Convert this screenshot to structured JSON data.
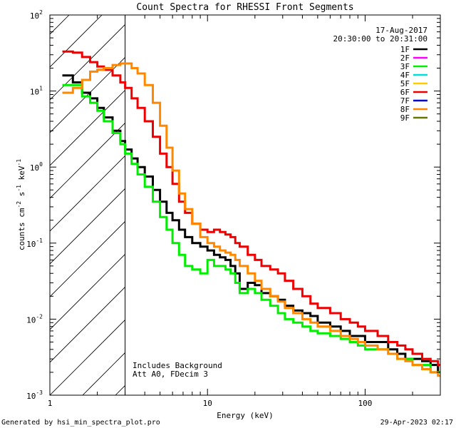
{
  "chart_data": {
    "type": "line",
    "title": "Count Spectra for RHESSI Front Segments",
    "xlabel": "Energy (keV)",
    "ylabel_parts": [
      "counts cm",
      "-2",
      " s",
      "-1",
      " keV",
      "-1"
    ],
    "xscale": "log",
    "yscale": "log",
    "xlim": [
      1,
      300
    ],
    "ylim": [
      0.001,
      100
    ],
    "x_ticks": [
      {
        "value": 1,
        "label": "1"
      },
      {
        "value": 10,
        "label": "10"
      },
      {
        "value": 100,
        "label": "100"
      }
    ],
    "y_ticks": [
      {
        "value": 100,
        "base": "10",
        "exp": "2"
      },
      {
        "value": 10,
        "base": "10",
        "exp": "1"
      },
      {
        "value": 1,
        "base": "10",
        "exp": "0"
      },
      {
        "value": 0.1,
        "base": "10",
        "exp": "-1"
      },
      {
        "value": 0.01,
        "base": "10",
        "exp": "-2"
      },
      {
        "value": 0.001,
        "base": "10",
        "exp": "-3"
      }
    ],
    "cutoff_energy": 3,
    "date": "17-Aug-2017",
    "time_range": "20:30:00 to 20:31:00",
    "annotations": [
      "Includes Background",
      "Att A0, FDecim 3"
    ],
    "legend": [
      {
        "name": "1F",
        "color": "#000000"
      },
      {
        "name": "2F",
        "color": "#ff00ff"
      },
      {
        "name": "3F",
        "color": "#00ee00"
      },
      {
        "name": "4F",
        "color": "#00dddd"
      },
      {
        "name": "5F",
        "color": "#ffcc00"
      },
      {
        "name": "6F",
        "color": "#ee0000"
      },
      {
        "name": "7F",
        "color": "#0000cc"
      },
      {
        "name": "8F",
        "color": "#ff8800"
      },
      {
        "name": "9F",
        "color": "#667700"
      }
    ],
    "series": [
      {
        "name": "1F",
        "color": "#000000",
        "x": [
          1.2,
          1.4,
          1.6,
          1.8,
          2.0,
          2.2,
          2.5,
          2.8,
          3.0,
          3.3,
          3.6,
          4.0,
          4.5,
          5.0,
          5.5,
          6.0,
          6.6,
          7.2,
          8.0,
          9.0,
          10,
          11,
          12,
          13,
          14,
          15,
          16,
          18,
          20,
          22,
          25,
          28,
          31,
          35,
          40,
          45,
          50,
          60,
          70,
          80,
          90,
          100,
          120,
          140,
          160,
          180,
          200,
          230,
          260,
          290
        ],
        "y": [
          16,
          13,
          9.5,
          8,
          6,
          4.5,
          3,
          2.2,
          1.7,
          1.3,
          1.0,
          0.75,
          0.5,
          0.35,
          0.25,
          0.2,
          0.15,
          0.12,
          0.1,
          0.09,
          0.08,
          0.07,
          0.065,
          0.06,
          0.05,
          0.04,
          0.025,
          0.03,
          0.028,
          0.022,
          0.02,
          0.018,
          0.015,
          0.013,
          0.012,
          0.011,
          0.009,
          0.008,
          0.007,
          0.006,
          0.006,
          0.005,
          0.005,
          0.004,
          0.0035,
          0.003,
          0.003,
          0.0028,
          0.0025,
          0.002
        ]
      },
      {
        "name": "3F",
        "color": "#00ee00",
        "x": [
          1.2,
          1.4,
          1.6,
          1.8,
          2.0,
          2.2,
          2.5,
          2.8,
          3.0,
          3.3,
          3.6,
          4.0,
          4.5,
          5.0,
          5.5,
          6.0,
          6.6,
          7.2,
          8.0,
          9.0,
          10,
          11,
          12,
          13,
          14,
          15,
          16,
          18,
          20,
          22,
          25,
          28,
          31,
          35,
          40,
          45,
          50,
          60,
          70,
          80,
          90,
          100,
          120,
          140,
          160,
          180,
          200,
          230,
          260,
          290
        ],
        "y": [
          12,
          12,
          8.5,
          7,
          5.5,
          4,
          2.8,
          2,
          1.5,
          1.1,
          0.8,
          0.55,
          0.35,
          0.22,
          0.15,
          0.1,
          0.07,
          0.05,
          0.045,
          0.04,
          0.06,
          0.05,
          0.05,
          0.045,
          0.04,
          0.03,
          0.022,
          0.025,
          0.022,
          0.018,
          0.015,
          0.012,
          0.01,
          0.009,
          0.008,
          0.007,
          0.0065,
          0.006,
          0.0055,
          0.005,
          0.0045,
          0.004,
          0.004,
          0.0035,
          0.003,
          0.003,
          0.0025,
          0.0025,
          0.002,
          0.002
        ]
      },
      {
        "name": "6F",
        "color": "#ee0000",
        "x": [
          1.2,
          1.4,
          1.6,
          1.8,
          2.0,
          2.2,
          2.5,
          2.8,
          3.0,
          3.3,
          3.6,
          4.0,
          4.5,
          5.0,
          5.5,
          6.0,
          6.6,
          7.2,
          8.0,
          9.0,
          10,
          11,
          12,
          13,
          14,
          15,
          16,
          18,
          20,
          22,
          25,
          28,
          31,
          35,
          40,
          45,
          50,
          60,
          70,
          80,
          90,
          100,
          120,
          140,
          160,
          180,
          200,
          230,
          260,
          290
        ],
        "y": [
          33,
          32,
          28,
          24,
          21,
          19,
          16,
          13,
          11,
          8,
          6,
          4,
          2.5,
          1.5,
          1.0,
          0.6,
          0.35,
          0.25,
          0.18,
          0.15,
          0.14,
          0.15,
          0.14,
          0.13,
          0.12,
          0.1,
          0.09,
          0.07,
          0.06,
          0.05,
          0.045,
          0.04,
          0.032,
          0.025,
          0.02,
          0.016,
          0.014,
          0.012,
          0.01,
          0.009,
          0.008,
          0.007,
          0.006,
          0.005,
          0.0045,
          0.004,
          0.0035,
          0.003,
          0.0028,
          0.0025
        ]
      },
      {
        "name": "8F",
        "color": "#ff8800",
        "x": [
          1.2,
          1.4,
          1.6,
          1.8,
          2.0,
          2.2,
          2.5,
          2.8,
          3.0,
          3.3,
          3.6,
          4.0,
          4.5,
          5.0,
          5.5,
          6.0,
          6.6,
          7.2,
          8.0,
          9.0,
          10,
          11,
          12,
          13,
          14,
          15,
          16,
          18,
          20,
          22,
          25,
          28,
          31,
          35,
          40,
          45,
          50,
          60,
          70,
          80,
          90,
          100,
          120,
          140,
          160,
          180,
          200,
          230,
          260,
          290
        ],
        "y": [
          9.5,
          11,
          14,
          18,
          19,
          20,
          22,
          23,
          23,
          20,
          17,
          12,
          7,
          3.5,
          1.8,
          0.9,
          0.45,
          0.28,
          0.18,
          0.12,
          0.1,
          0.09,
          0.08,
          0.075,
          0.07,
          0.06,
          0.05,
          0.04,
          0.032,
          0.025,
          0.02,
          0.017,
          0.014,
          0.012,
          0.01,
          0.009,
          0.008,
          0.007,
          0.006,
          0.0055,
          0.005,
          0.0045,
          0.004,
          0.0035,
          0.003,
          0.0028,
          0.0025,
          0.0022,
          0.002,
          0.0018
        ]
      }
    ]
  },
  "footer": {
    "left": "Generated by hsi_min_spectra_plot.pro",
    "right": "29-Apr-2023 02:17"
  }
}
